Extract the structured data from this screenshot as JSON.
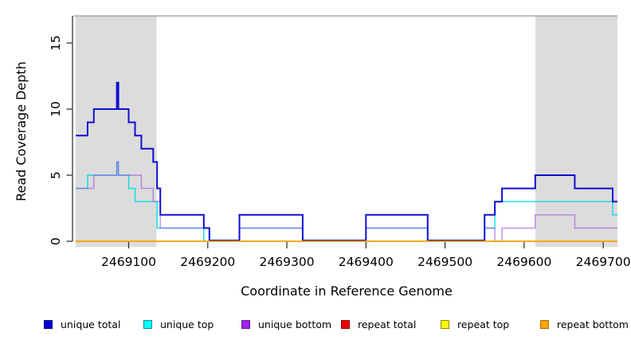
{
  "page": {
    "background": "#FFFFFF"
  },
  "axes": {
    "xlabel": "Coordinate in Reference Genome",
    "ylabel": "Read Coverage Depth"
  },
  "legend": {
    "position": "bottom",
    "items": [
      {
        "label": "unique total",
        "swatch_color": "#0000CD",
        "swatch_border": "#00008B"
      },
      {
        "label": "unique top",
        "swatch_color": "#00FFFF",
        "swatch_border": "#008B8B"
      },
      {
        "label": "unique bottom",
        "swatch_color": "#A020F0",
        "swatch_border": "#5D1A8B"
      },
      {
        "label": "repeat total",
        "swatch_color": "#EE0000",
        "swatch_border": "#8B0000"
      },
      {
        "label": "repeat top",
        "swatch_color": "#FFFF00",
        "swatch_border": "#8B8B00"
      },
      {
        "label": "repeat bottom",
        "swatch_color": "#FFA500",
        "swatch_border": "#A66B00"
      }
    ]
  },
  "chart_data": {
    "type": "line",
    "subtype": "step",
    "title": "",
    "xlabel": "Coordinate in Reference Genome",
    "ylabel": "Read Coverage Depth",
    "xlim": [
      2469033,
      2469718
    ],
    "ylim": [
      0,
      17
    ],
    "grid": false,
    "legend_position": "bottom",
    "background_color": "#FFFFFF",
    "shaded_region_color": "#DCDCDC",
    "top_border_color": "#9A9A9A",
    "axis_color": "#262626",
    "x_ticks": [
      2469100,
      2469200,
      2469300,
      2469400,
      2469500,
      2469600,
      2469700
    ],
    "x_tick_labels": [
      "2469100",
      "2469200",
      "2469300",
      "2469400",
      "2469500",
      "2469600",
      "2469700"
    ],
    "y_ticks": [
      0,
      5,
      10,
      15
    ],
    "y_tick_labels": [
      "0",
      "5",
      "10",
      "15"
    ],
    "shaded_regions": [
      {
        "x0": 2469033,
        "x1": 2469135
      },
      {
        "x0": 2469614,
        "x1": 2469718
      }
    ],
    "series": [
      {
        "name": "unique total",
        "color": "#0F0FD2",
        "line_width": 2,
        "opacity": 1,
        "steps": [
          [
            2469033,
            8
          ],
          [
            2469048,
            9
          ],
          [
            2469056,
            10
          ],
          [
            2469085,
            12
          ],
          [
            2469087,
            10
          ],
          [
            2469100,
            9
          ],
          [
            2469108,
            8
          ],
          [
            2469116,
            7
          ],
          [
            2469131,
            6
          ],
          [
            2469136,
            4
          ],
          [
            2469140,
            2
          ],
          [
            2469195,
            1
          ],
          [
            2469202,
            0
          ],
          [
            2469240,
            2
          ],
          [
            2469320,
            0
          ],
          [
            2469400,
            2
          ],
          [
            2469478,
            0
          ],
          [
            2469550,
            2
          ],
          [
            2469563,
            3
          ],
          [
            2469572,
            4
          ],
          [
            2469614,
            5
          ],
          [
            2469664,
            4
          ],
          [
            2469712,
            3
          ]
        ]
      },
      {
        "name": "unique top",
        "color": "#00D9E6",
        "line_width": 1.4,
        "opacity": 0.95,
        "steps": [
          [
            2469033,
            4
          ],
          [
            2469048,
            5
          ],
          [
            2469085,
            6
          ],
          [
            2469087,
            5
          ],
          [
            2469100,
            4
          ],
          [
            2469108,
            3
          ],
          [
            2469136,
            1
          ],
          [
            2469195,
            0
          ],
          [
            2469240,
            1
          ],
          [
            2469320,
            0
          ],
          [
            2469400,
            1
          ],
          [
            2469478,
            0
          ],
          [
            2469550,
            1
          ],
          [
            2469563,
            3
          ],
          [
            2469712,
            2
          ]
        ]
      },
      {
        "name": "unique bottom",
        "color": "#9A50DC",
        "line_width": 1.4,
        "opacity": 0.65,
        "steps": [
          [
            2469033,
            4
          ],
          [
            2469056,
            5
          ],
          [
            2469085,
            6
          ],
          [
            2469087,
            5
          ],
          [
            2469116,
            4
          ],
          [
            2469131,
            3
          ],
          [
            2469140,
            1
          ],
          [
            2469202,
            0
          ],
          [
            2469240,
            1
          ],
          [
            2469320,
            0
          ],
          [
            2469400,
            1
          ],
          [
            2469478,
            0
          ],
          [
            2469550,
            1
          ],
          [
            2469563,
            0
          ],
          [
            2469572,
            1
          ],
          [
            2469614,
            2
          ],
          [
            2469664,
            1
          ]
        ]
      },
      {
        "name": "repeat total",
        "color": "#EE0000",
        "line_width": 1.5,
        "opacity": 1,
        "steps": [
          [
            2469033,
            0
          ]
        ]
      },
      {
        "name": "repeat top",
        "color": "#FFFF00",
        "line_width": 1.5,
        "opacity": 1,
        "steps": [
          [
            2469033,
            0
          ]
        ]
      },
      {
        "name": "repeat bottom",
        "color": "#FFA500",
        "line_width": 1.8,
        "opacity": 1,
        "steps": [
          [
            2469033,
            0
          ]
        ]
      }
    ]
  }
}
